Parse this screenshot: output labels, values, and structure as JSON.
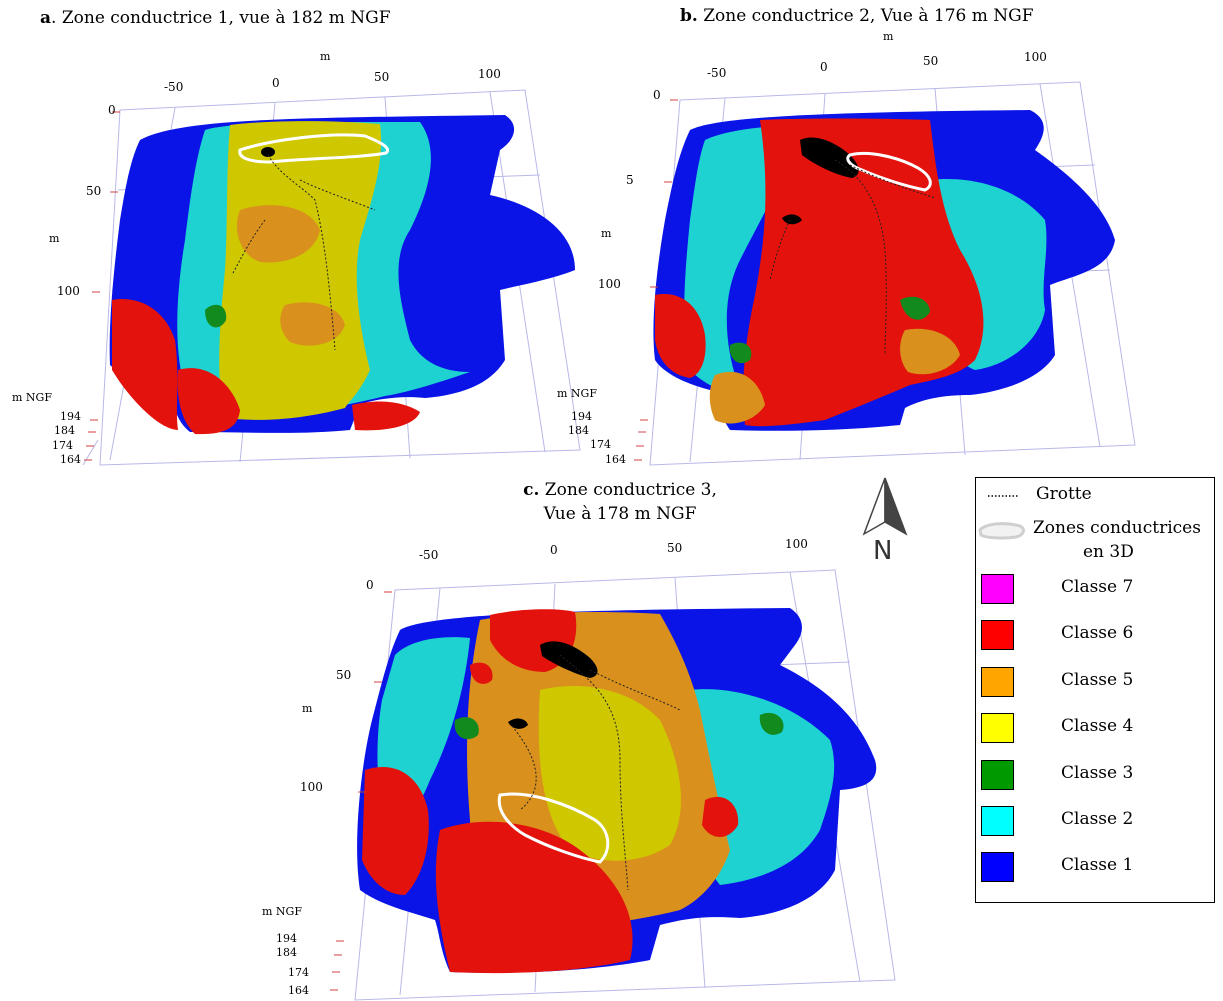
{
  "titles": {
    "a_letter": "a",
    "a_rest": ". Zone conductrice 1, vue à 182 m NGF",
    "b_letter": "b.",
    "b_rest": " Zone conductrice 2, Vue à 176 m NGF",
    "c_letter": "c.",
    "c_line1": " Zone conductrice 3,",
    "c_line2": "Vue à 178 m NGF"
  },
  "panel_a": {
    "x_unit": "m",
    "x_ticks": [
      "-50",
      "0",
      "50",
      "100"
    ],
    "y_unit": "m",
    "y_ticks": [
      "0",
      "50",
      "100"
    ],
    "z_unit": "m NGF",
    "z_ticks": [
      "194",
      "184",
      "174",
      "164"
    ]
  },
  "panel_b": {
    "x_unit": "m",
    "x_ticks": [
      "-50",
      "0",
      "50",
      "100"
    ],
    "y_unit": "m",
    "y_ticks": [
      "0",
      "5",
      "100"
    ],
    "z_unit": "m NGF",
    "z_ticks": [
      "194",
      "184",
      "174",
      "164"
    ]
  },
  "panel_c": {
    "x_ticks": [
      "-50",
      "0",
      "50",
      "100"
    ],
    "y_unit": "m",
    "y_ticks": [
      "0",
      "50",
      "100"
    ],
    "z_unit": "m NGF",
    "z_ticks": [
      "194",
      "184",
      "174",
      "164"
    ]
  },
  "north_arrow": {
    "label": "N",
    "icon": "north-arrow-icon"
  },
  "legend": {
    "grotte_label": "Grotte",
    "zones_label_line1": "Zones conductrices",
    "zones_label_line2": "en 3D",
    "classes": [
      {
        "label": "Classe 7",
        "color": "#ff00ff"
      },
      {
        "label": "Classe 6",
        "color": "#ff0000"
      },
      {
        "label": "Classe 5",
        "color": "#ffa500"
      },
      {
        "label": "Classe 4",
        "color": "#ffff00"
      },
      {
        "label": "Classe 3",
        "color": "#009a00"
      },
      {
        "label": "Classe 2",
        "color": "#00ffff"
      },
      {
        "label": "Classe 1",
        "color": "#0000ff"
      }
    ]
  },
  "colors": {
    "class1": "#0a14e6",
    "class2": "#1ed2d2",
    "class3": "#138a1e",
    "class4": "#cfc800",
    "class5": "#d9901c",
    "class6": "#e3120c",
    "zone_outline": "#ffffff",
    "cave": "#000000",
    "grid": "#b8b8e8",
    "axis_tick": "#d04040"
  }
}
